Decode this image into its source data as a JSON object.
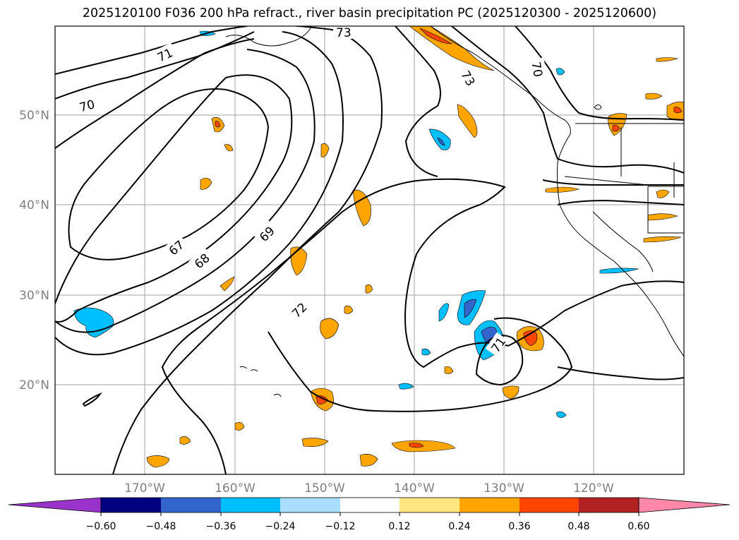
{
  "title": "2025120100 F036 200 hPa refract., river basin precipitation PC (2025120300 - 2025120600)",
  "map": {
    "lat_labels": [
      "50°N",
      "40°N",
      "30°N",
      "20°N"
    ],
    "lon_labels": [
      "170°W",
      "160°W",
      "150°W",
      "140°W",
      "130°W",
      "120°W"
    ],
    "contour_labels": [
      "73",
      "71",
      "70",
      "67",
      "68",
      "69",
      "72",
      "73",
      "71",
      "70"
    ],
    "contour_color": "#000000",
    "grid_color": "#a0a0a0"
  },
  "colorbar": {
    "ticks": [
      "−0.60",
      "−0.48",
      "−0.36",
      "−0.24",
      "−0.12",
      "0.12",
      "0.24",
      "0.36",
      "0.48",
      "0.60"
    ],
    "colors": [
      "#9933cc",
      "#000080",
      "#3366cc",
      "#00bfff",
      "#aadeff",
      "#ffffff",
      "#ffe680",
      "#ffa500",
      "#ff4500",
      "#b22222",
      "#ff88aa",
      "#ff88aa"
    ]
  }
}
